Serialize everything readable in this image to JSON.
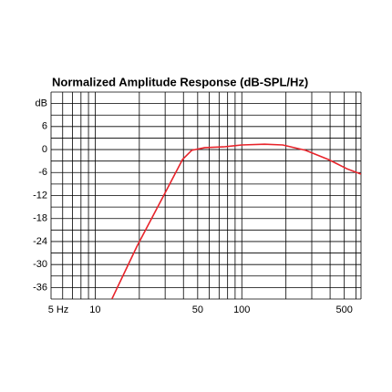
{
  "chart_data": {
    "type": "line",
    "title": "Normalized Amplitude Response (dB-SPL/Hz)",
    "x": [
      13,
      19.3,
      29.6,
      39.4,
      45.5,
      56,
      75,
      100,
      143,
      190,
      272,
      390,
      520,
      650
    ],
    "series": [
      {
        "color": "#e8242b",
        "values": [
          -39,
          -25.2,
          -11.7,
          -2.6,
          -0.2,
          0.5,
          0.7,
          1.2,
          1.4,
          1.2,
          -0.2,
          -2.6,
          -5,
          -6.4
        ]
      }
    ],
    "xlog": true,
    "xlim": [
      5,
      650
    ],
    "ylim": [
      -39,
      15
    ],
    "xticks": [
      {
        "value": 5,
        "label": "5 Hz"
      },
      10,
      50,
      100,
      500
    ],
    "xgrid_minor": [
      6,
      7,
      8,
      9,
      20,
      30,
      40,
      60,
      70,
      80,
      90,
      200,
      300,
      400,
      600
    ],
    "yticks": [
      {
        "value": 12,
        "label": "dB"
      },
      6,
      0,
      -6,
      -12,
      -18,
      -24,
      -30,
      -36
    ],
    "ygrid_minor": [
      15,
      9,
      3,
      -3,
      -9,
      -15,
      -21,
      -27,
      -33,
      -39
    ],
    "grid": true
  }
}
